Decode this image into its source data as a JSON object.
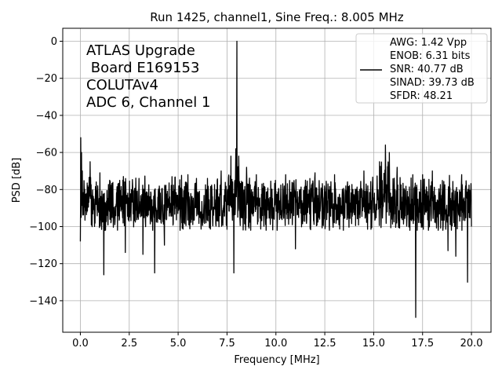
{
  "chart_data": {
    "type": "line",
    "title": "Run 1425, channel1, Sine Freq.: 8.005 MHz",
    "xlabel": "Frequency [MHz]",
    "ylabel": "PSD [dB]",
    "xlim": [
      -0.9,
      21.0
    ],
    "ylim": [
      -157,
      7
    ],
    "grid": true,
    "xticks": [
      0.0,
      2.5,
      5.0,
      7.5,
      10.0,
      12.5,
      15.0,
      17.5,
      20.0
    ],
    "xtick_labels": [
      "0.0",
      "2.5",
      "5.0",
      "7.5",
      "10.0",
      "12.5",
      "15.0",
      "17.5",
      "20.0"
    ],
    "yticks": [
      0,
      -20,
      -40,
      -60,
      -80,
      -100,
      -120,
      -140
    ],
    "ytick_labels": [
      "0",
      "−20",
      "−40",
      "−60",
      "−80",
      "−100",
      "−120",
      "−140"
    ],
    "annotation": [
      "ATLAS Upgrade",
      " Board E169153",
      "COLUTAv4",
      "ADC 6, Channel 1"
    ],
    "legend": {
      "placement": "top-right",
      "lines": [
        "AWG: 1.42 Vpp",
        "ENOB: 6.31 bits",
        "SNR: 40.77 dB",
        "SINAD: 39.73 dB",
        "SFDR: 48.21"
      ]
    },
    "series": [
      {
        "color": "#000000",
        "noise_floor_db": -88,
        "noise_band_db": [
          -102,
          -72
        ],
        "x_start": 0.0,
        "x_end": 20.0,
        "points": [
          [
            0.0,
            -108
          ],
          [
            0.02,
            -52
          ],
          [
            0.04,
            -95
          ],
          [
            0.06,
            -60
          ],
          [
            0.1,
            -70
          ],
          [
            0.5,
            -65
          ],
          [
            1.0,
            -71
          ],
          [
            1.2,
            -126
          ],
          [
            1.5,
            -75
          ],
          [
            2.2,
            -73
          ],
          [
            2.3,
            -114
          ],
          [
            3.0,
            -74
          ],
          [
            3.2,
            -115
          ],
          [
            3.8,
            -125
          ],
          [
            4.3,
            -110
          ],
          [
            5.5,
            -72
          ],
          [
            6.5,
            -74
          ],
          [
            7.2,
            -70
          ],
          [
            7.7,
            -62
          ],
          [
            7.85,
            -125
          ],
          [
            7.95,
            -58
          ],
          [
            8.005,
            0
          ],
          [
            8.1,
            -62
          ],
          [
            8.5,
            -68
          ],
          [
            9.0,
            -72
          ],
          [
            10.5,
            -72
          ],
          [
            11.0,
            -112
          ],
          [
            12.0,
            -71
          ],
          [
            13.0,
            -72
          ],
          [
            14.5,
            -70
          ],
          [
            15.3,
            -65
          ],
          [
            15.6,
            -56
          ],
          [
            15.8,
            -60
          ],
          [
            16.2,
            -68
          ],
          [
            17.0,
            -72
          ],
          [
            17.15,
            -149
          ],
          [
            17.5,
            -72
          ],
          [
            18.0,
            -70
          ],
          [
            18.8,
            -113
          ],
          [
            19.2,
            -116
          ],
          [
            19.5,
            -72
          ],
          [
            19.8,
            -130
          ],
          [
            20.0,
            -100
          ]
        ]
      }
    ]
  }
}
